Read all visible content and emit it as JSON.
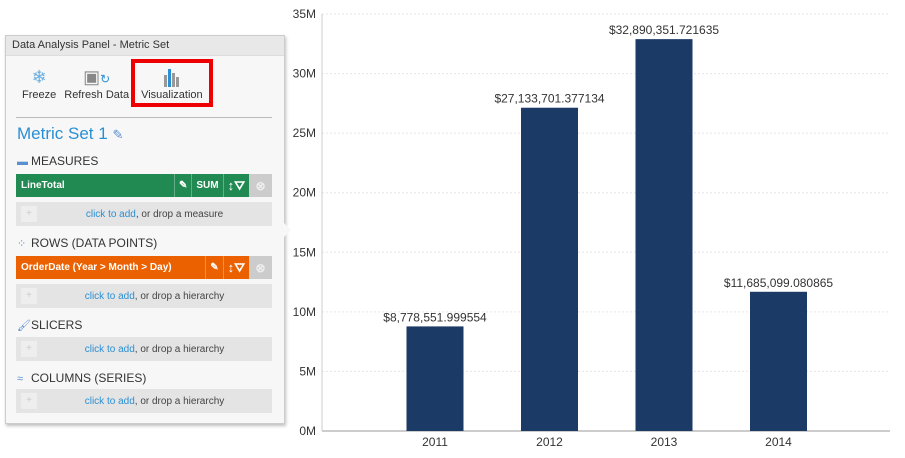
{
  "panel": {
    "title": "Data Analysis Panel - Metric Set",
    "toolbar": {
      "freeze": "Freeze",
      "refresh": "Refresh Data",
      "visualization": "Visualization"
    },
    "metric_set": "Metric Set 1",
    "measures": {
      "label": "MEASURES",
      "item": "LineTotal",
      "agg": "SUM",
      "add_link": "click to add",
      "add_rest": ", or drop a measure"
    },
    "rows": {
      "label": "ROWS (DATA POINTS)",
      "item": "OrderDate (Year > Month > Day)",
      "add_link": "click to add",
      "add_rest": ", or drop a hierarchy"
    },
    "slicers": {
      "label": "SLICERS",
      "add_link": "click to add",
      "add_rest": ", or drop a hierarchy"
    },
    "columns": {
      "label": "COLUMNS (SERIES)",
      "add_link": "click to add",
      "add_rest": ", or drop a hierarchy"
    },
    "colors": {
      "measure": "#218a52",
      "row": "#eb6100",
      "highlight": "#e00000"
    }
  },
  "chart_data": {
    "type": "bar",
    "categories": [
      "2011",
      "2012",
      "2013",
      "2014"
    ],
    "values": [
      8778551.999554,
      27133701.377134,
      32890351.721635,
      11685099.080865
    ],
    "data_labels": [
      "$8,778,551.999554",
      "$27,133,701.377134",
      "$32,890,351.721635",
      "$11,685,099.080865"
    ],
    "yticks": [
      "0M",
      "5M",
      "10M",
      "15M",
      "20M",
      "25M",
      "30M",
      "35M"
    ],
    "ylim": [
      0,
      35000000
    ],
    "grid": true,
    "color": "#1b3a66",
    "xlabel": "",
    "ylabel": ""
  }
}
